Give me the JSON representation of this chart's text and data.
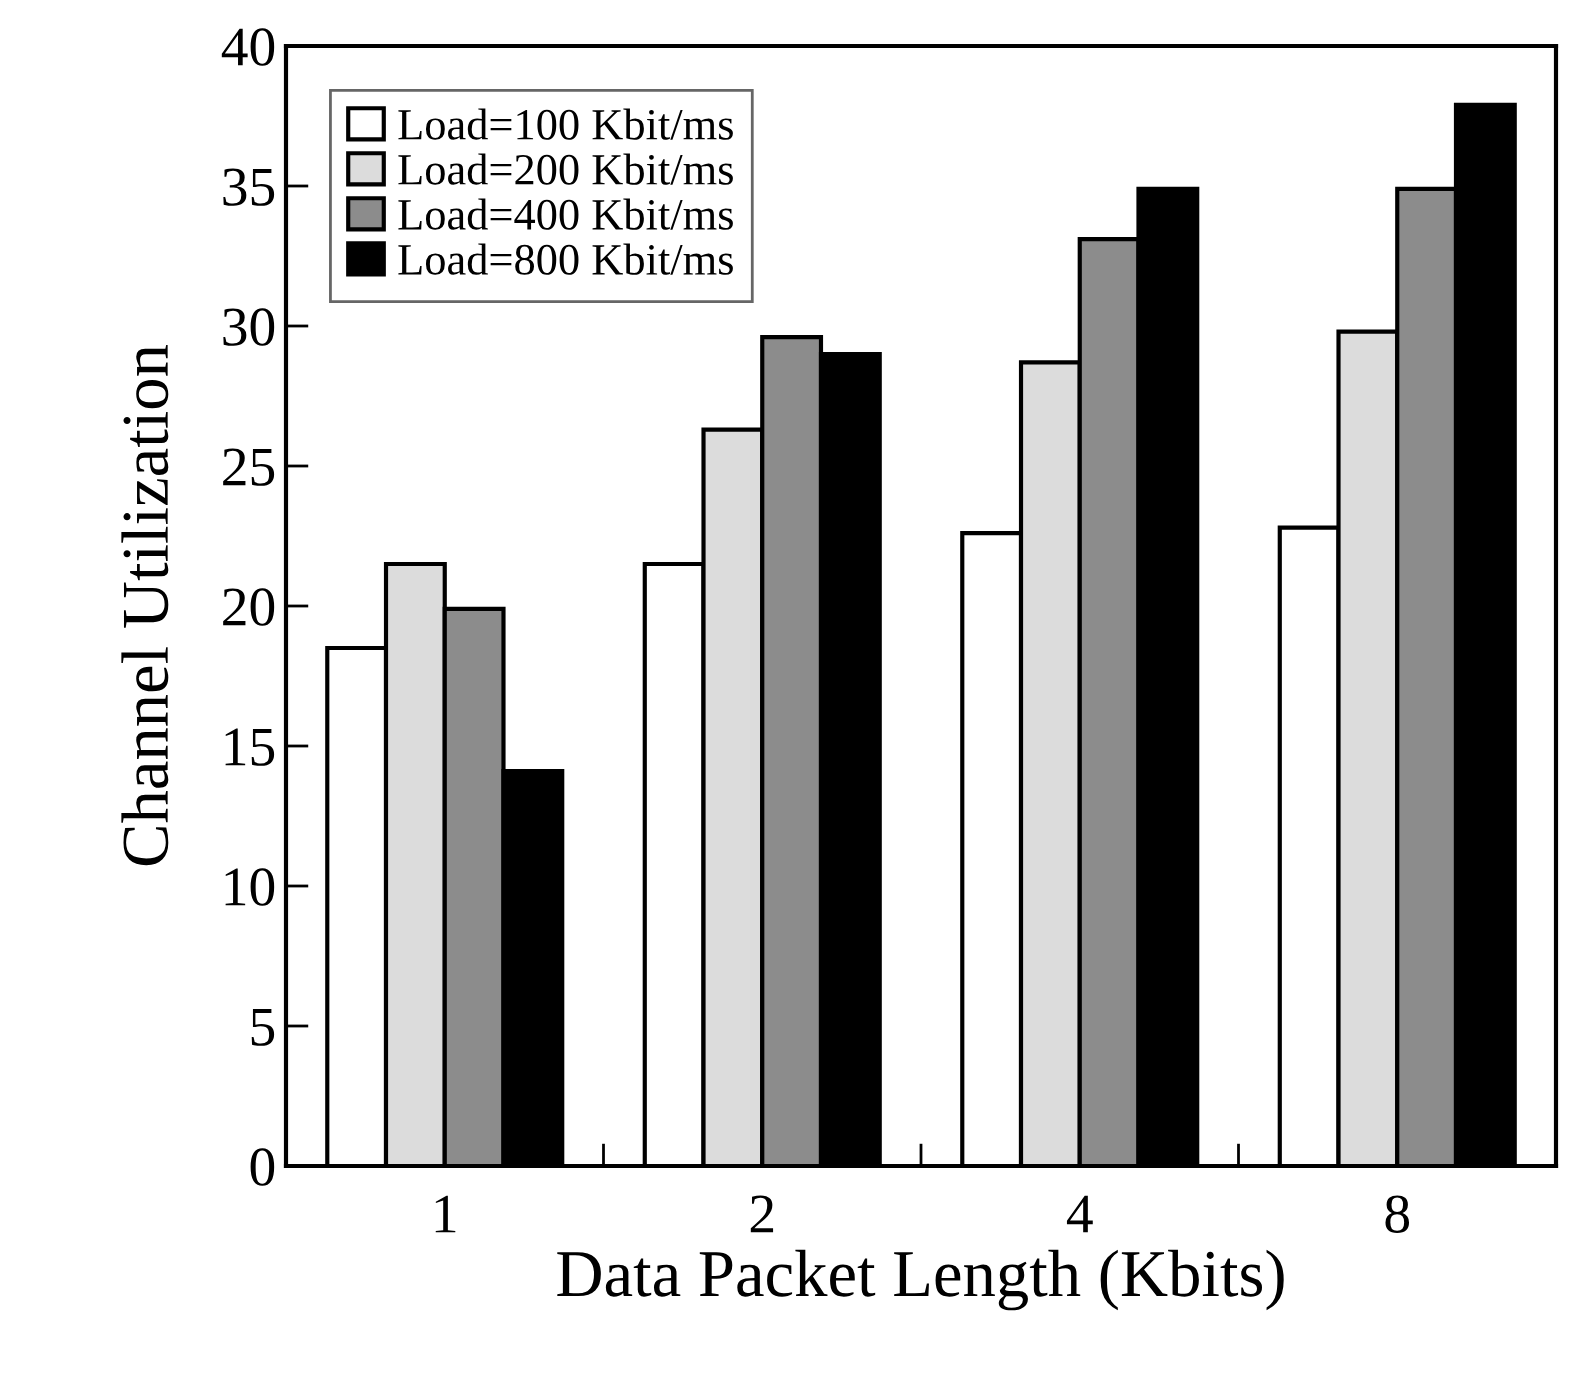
{
  "chart_data": {
    "type": "bar",
    "xlabel": "Data Packet Length (Kbits)",
    "ylabel": "Channel Utilization",
    "categories": [
      "1",
      "2",
      "4",
      "8"
    ],
    "series": [
      {
        "name": "Load=100 Kbit/ms",
        "color": "#ffffff",
        "values": [
          18.5,
          21.5,
          22.6,
          22.8
        ]
      },
      {
        "name": "Load=200 Kbit/ms",
        "color": "#dcdcdc",
        "values": [
          21.5,
          26.3,
          28.7,
          29.8
        ]
      },
      {
        "name": "Load=400 Kbit/ms",
        "color": "#8c8c8c",
        "values": [
          19.9,
          29.6,
          33.1,
          34.9
        ]
      },
      {
        "name": "Load=800 Kbit/ms",
        "color": "#000000",
        "values": [
          14.1,
          29.0,
          34.9,
          37.9
        ]
      }
    ],
    "ylim": [
      0,
      40
    ],
    "yticks": [
      0,
      5,
      10,
      15,
      20,
      25,
      30,
      35,
      40
    ],
    "grid": false,
    "legend": "top left"
  }
}
